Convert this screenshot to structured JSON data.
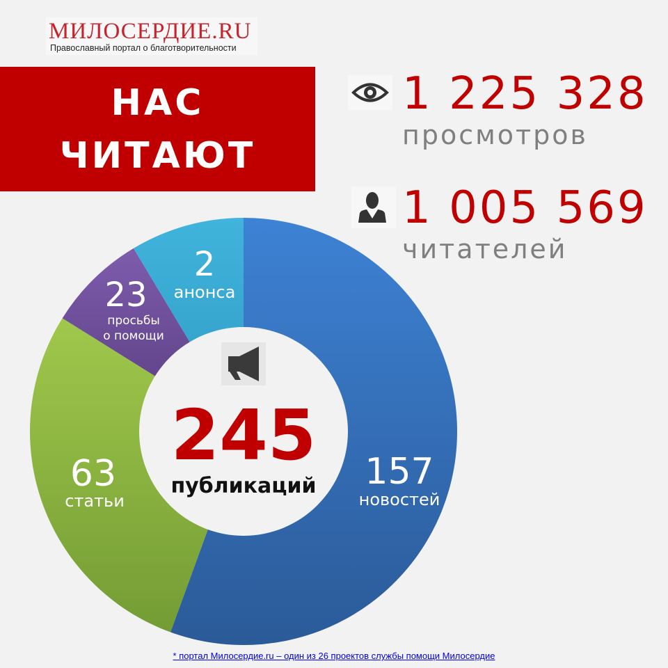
{
  "logo": {
    "title": "МИЛОСЕРДИЕ.RU",
    "subtitle": "Православный портал о благотворительности"
  },
  "header": {
    "line1": "НАС",
    "line2": "ЧИТАЮТ"
  },
  "stats": [
    {
      "icon": "eye-icon",
      "value": "1 225 328",
      "label": "просмотров"
    },
    {
      "icon": "person-icon",
      "value": "1 005 569",
      "label": "читателей"
    }
  ],
  "chart_data": {
    "type": "pie",
    "donut": true,
    "center": {
      "value": "245",
      "label": "публикаций",
      "icon": "megaphone-icon"
    },
    "categories": [
      "новостей",
      "статьи",
      "просьбы о помощи",
      "анонса"
    ],
    "values": [
      157,
      63,
      23,
      2
    ],
    "labels": [
      {
        "value": "157",
        "text": [
          "новостей"
        ]
      },
      {
        "value": "63",
        "text": [
          "статьи"
        ]
      },
      {
        "value": "23",
        "text": [
          "просьбы",
          "о помощи"
        ]
      },
      {
        "value": "2",
        "text": [
          "анонса"
        ]
      }
    ],
    "colors": [
      "#3a78c8",
      "#8db544",
      "#6a4a96",
      "#3aaed6"
    ]
  },
  "footer": "* портал Милосердие.ru – один из 26 проектов  службы помощи Милосердие"
}
